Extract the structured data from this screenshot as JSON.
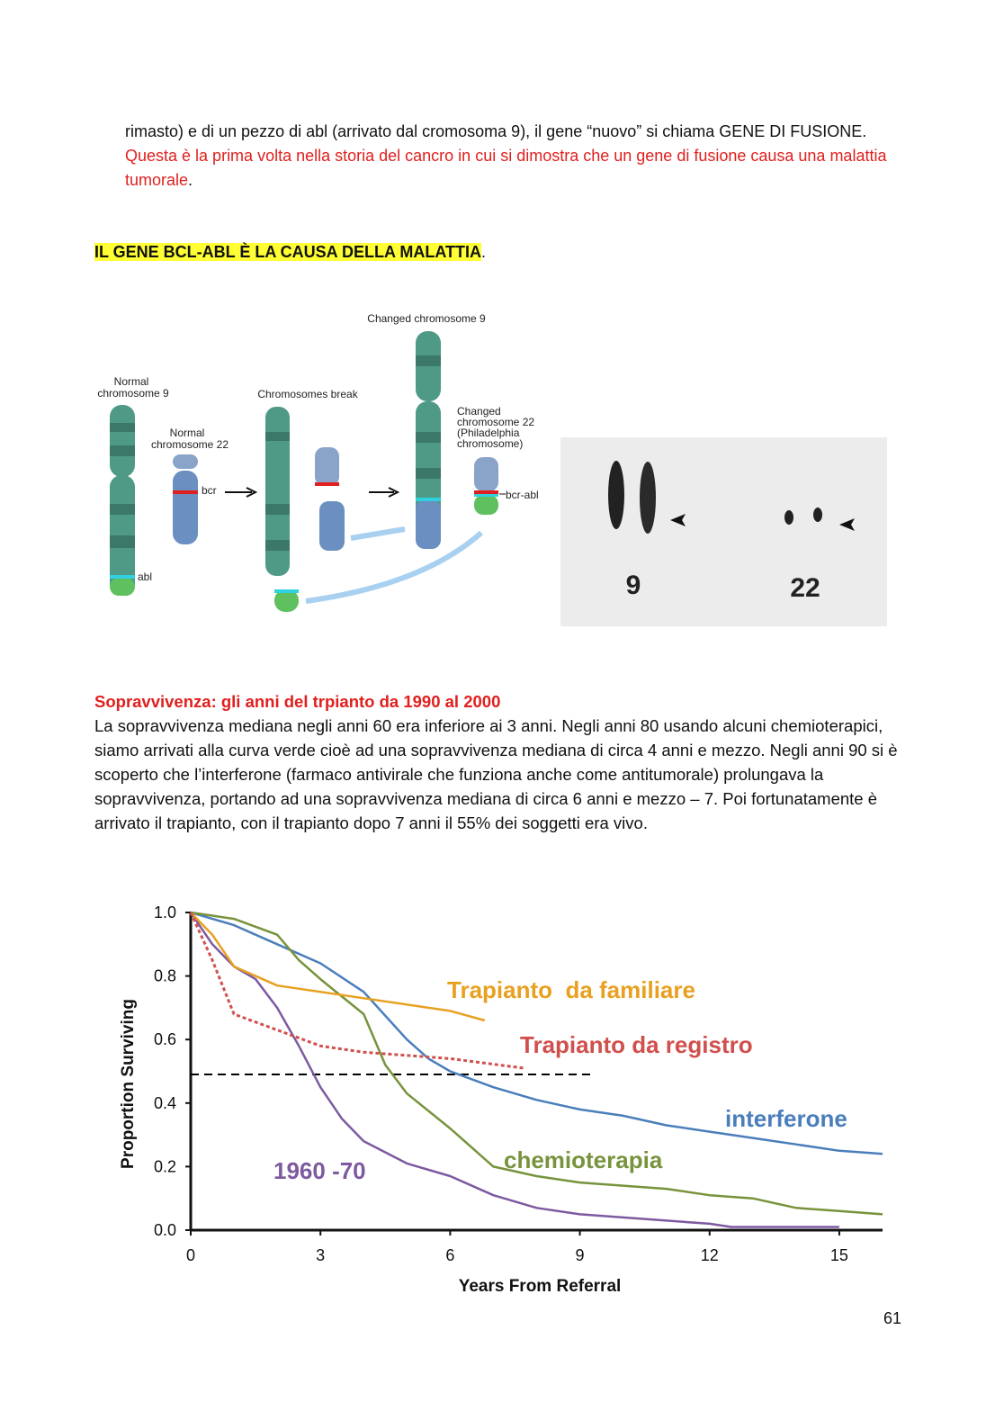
{
  "intro": {
    "text": "rimasto) e di un pezzo di abl (arrivato dal cromosoma 9), il gene “nuovo” si chiama GENE DI FUSIONE.",
    "highlight": "Questa è la prima volta nella storia del cancro in cui si dimostra che un gene di fusione causa una malattia tumorale",
    "end": "."
  },
  "heading": {
    "text": "IL GENE BCL-ABL È LA CAUSA DELLA MALATTIA",
    "end": "."
  },
  "figure": {
    "labels": [
      "Normal",
      "chromosome 9",
      "Normal",
      "chromosome 22",
      "bcr",
      "abl",
      "Chromosomes break",
      "Changed chromosome 9",
      "Changed",
      "chromosome 22",
      "(Philadelphia",
      "chromosome)",
      "bcr-abl",
      "9",
      "22"
    ]
  },
  "section": {
    "title": "Sopravvivenza: gli anni del trpianto da 1990 al 2000",
    "text": "La sopravvivenza mediana negli anni 60 era inferiore ai 3 anni. Negli anni 80 usando alcuni chemioterapici, siamo arrivati alla curva verde cioè ad una sopravvivenza mediana di circa 4 anni e mezzo. Negli anni 90 si è scoperto che l’interferone (farmaco antivirale che funziona anche come antitumorale) prolungava la sopravvivenza, portando ad una sopravvivenza mediana di circa 6 anni e mezzo – 7. Poi fortunatamente è arrivato il trapianto, con il trapianto dopo 7 anni il 55% dei soggetti era vivo."
  },
  "chart_data": {
    "type": "line",
    "x_label": "Years From Referral",
    "y_label": "Proportion Surviving",
    "xlim": [
      0,
      16
    ],
    "ylim": [
      0,
      1
    ],
    "xticks": [
      0,
      3,
      6,
      9,
      12,
      15
    ],
    "yticks": [
      {
        "value": 0,
        "label": "0.0"
      },
      0.2,
      0.4,
      0.6,
      0.8,
      {
        "value": 1,
        "label": "1.0"
      }
    ],
    "series": [
      {
        "name": "interferone",
        "color": "#4a7ebb",
        "style": "solid",
        "x": [
          0,
          1,
          2,
          3,
          4,
          5,
          5.5,
          6,
          7,
          8,
          9,
          10,
          11,
          12,
          13,
          14,
          15,
          16
        ],
        "values": [
          1,
          0.96,
          0.9,
          0.84,
          0.75,
          0.6,
          0.54,
          0.5,
          0.45,
          0.41,
          0.38,
          0.36,
          0.33,
          0.31,
          0.29,
          0.27,
          0.25,
          0.24
        ]
      },
      {
        "name": "chemioterapia",
        "color": "#77933c",
        "style": "solid",
        "x": [
          0,
          1,
          2,
          2.5,
          3,
          4,
          4.5,
          5,
          6,
          7,
          8,
          9,
          10,
          11,
          12,
          13,
          14,
          15,
          16
        ],
        "values": [
          1,
          0.98,
          0.93,
          0.85,
          0.79,
          0.68,
          0.52,
          0.43,
          0.32,
          0.2,
          0.17,
          0.15,
          0.14,
          0.13,
          0.11,
          0.1,
          0.07,
          0.06,
          0.05
        ]
      },
      {
        "name": "1960 -70",
        "color": "#7d5aa0",
        "style": "solid",
        "x": [
          0,
          0.5,
          1,
          1.5,
          2,
          2.5,
          3,
          3.5,
          4,
          5,
          6,
          7,
          8,
          9,
          10,
          12,
          12.5,
          15
        ],
        "values": [
          1,
          0.9,
          0.83,
          0.79,
          0.7,
          0.58,
          0.45,
          0.35,
          0.28,
          0.21,
          0.17,
          0.11,
          0.07,
          0.05,
          0.04,
          0.02,
          0.01,
          0.01
        ]
      },
      {
        "name": "Trapianto  da familiare",
        "color": "#e8a020",
        "style": "solid",
        "x": [
          0,
          0.5,
          1,
          2,
          4,
          6,
          6.8
        ],
        "values": [
          1,
          0.93,
          0.83,
          0.77,
          0.73,
          0.69,
          0.66
        ]
      },
      {
        "name": "Trapianto da registro",
        "color": "#d0504d",
        "style": "dotted",
        "x": [
          0,
          0.5,
          1,
          2,
          3,
          4,
          6,
          7.7
        ],
        "values": [
          1,
          0.85,
          0.68,
          0.63,
          0.58,
          0.56,
          0.54,
          0.51
        ]
      }
    ],
    "reference_lines": [
      {
        "y": 0.49,
        "x": [
          0,
          9.3
        ],
        "color": "#000000",
        "style": "dashed"
      }
    ]
  },
  "page_number": "61"
}
